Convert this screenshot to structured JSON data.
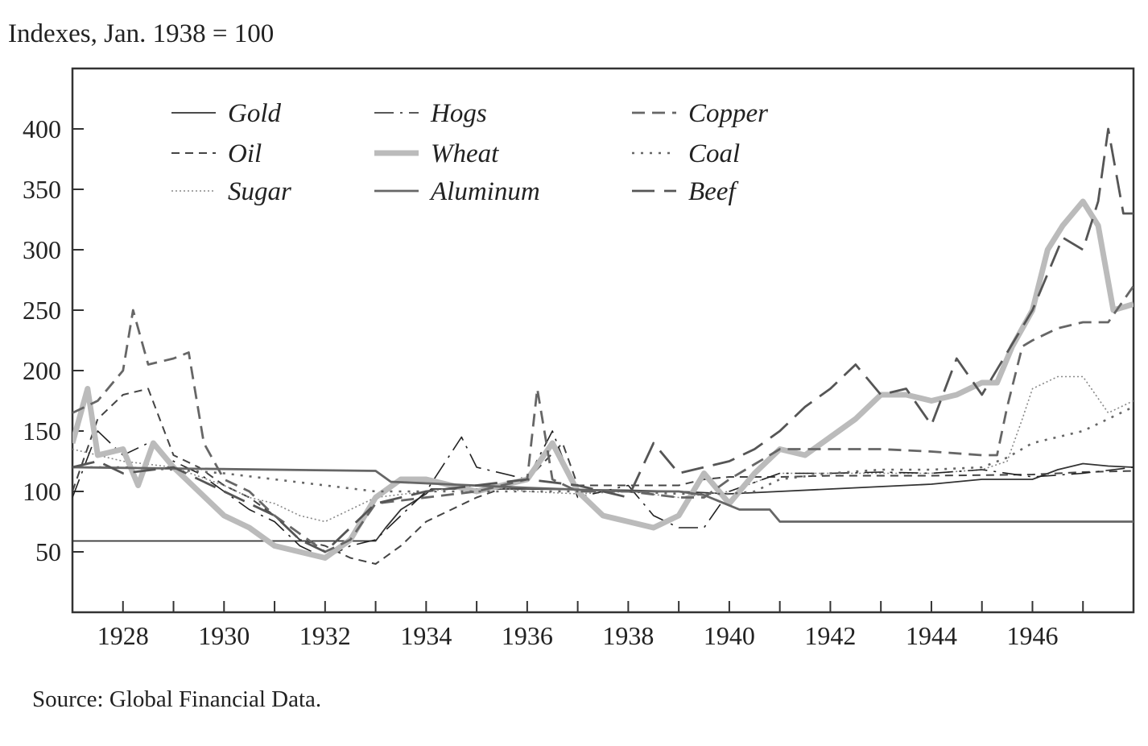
{
  "chart_data": {
    "type": "line",
    "ylabel": "Indexes, Jan. 1938 = 100",
    "source": "Source: Global Financial Data.",
    "xlim": [
      1927.0,
      1948.0
    ],
    "ylim": [
      0,
      450
    ],
    "x_ticks": [
      1928,
      1930,
      1932,
      1934,
      1936,
      1938,
      1940,
      1942,
      1944,
      1946
    ],
    "y_ticks": [
      50,
      100,
      150,
      200,
      250,
      300,
      350,
      400
    ],
    "series": [
      {
        "name": "Gold",
        "color": "#333333",
        "width": 1.8,
        "dash": "",
        "x": [
          1927.0,
          1933.0,
          1933.2,
          1933.5,
          1934.0,
          1934.1,
          1936,
          1938,
          1939,
          1940,
          1941,
          1942,
          1943,
          1944,
          1945,
          1946,
          1946.5,
          1947,
          1947.5,
          1948
        ],
        "y": [
          59,
          59,
          70,
          85,
          98,
          102,
          102,
          101,
          100,
          98,
          100,
          102,
          104,
          106,
          110,
          110,
          118,
          123,
          121,
          120
        ]
      },
      {
        "name": "Oil",
        "color": "#444444",
        "width": 2,
        "dash": "10 7",
        "x": [
          1927.0,
          1927.5,
          1928,
          1928.5,
          1929,
          1929.5,
          1930,
          1930.5,
          1931,
          1931.5,
          1932,
          1932.5,
          1933,
          1933.5,
          1934,
          1935,
          1936,
          1936.7,
          1937,
          1938,
          1939,
          1939.5,
          1940,
          1941,
          1942,
          1944,
          1946,
          1947,
          1948
        ],
        "y": [
          100,
          160,
          180,
          185,
          130,
          120,
          105,
          95,
          80,
          60,
          55,
          45,
          40,
          55,
          75,
          95,
          110,
          140,
          105,
          105,
          105,
          110,
          112,
          112,
          113,
          113,
          114,
          116,
          117
        ]
      },
      {
        "name": "Sugar",
        "color": "#888888",
        "width": 1.6,
        "dash": "2 3",
        "x": [
          1927.0,
          1927.5,
          1928,
          1929,
          1930,
          1930.5,
          1931,
          1931.5,
          1932,
          1932.5,
          1933,
          1934,
          1935,
          1936,
          1937,
          1938,
          1939,
          1940,
          1941,
          1942,
          1943,
          1944,
          1945,
          1945.5,
          1945.8,
          1946,
          1946.5,
          1947,
          1947.5,
          1948
        ],
        "y": [
          135,
          130,
          125,
          120,
          105,
          95,
          90,
          80,
          75,
          85,
          95,
          100,
          105,
          100,
          98,
          100,
          95,
          100,
          115,
          115,
          115,
          115,
          118,
          125,
          160,
          185,
          195,
          195,
          165,
          175
        ]
      },
      {
        "name": "Hogs",
        "color": "#222222",
        "width": 1.6,
        "dash": "24 8 3 8",
        "x": [
          1927.0,
          1927.5,
          1928,
          1928.5,
          1929,
          1929.5,
          1930,
          1930.5,
          1931,
          1931.5,
          1932,
          1932.5,
          1933,
          1933.5,
          1934,
          1934.7,
          1935,
          1936,
          1936.5,
          1937,
          1938,
          1938.5,
          1939,
          1939.5,
          1940,
          1941,
          1942,
          1943,
          1944,
          1945,
          1946,
          1947,
          1948
        ],
        "y": [
          95,
          150,
          130,
          140,
          125,
          115,
          100,
          85,
          75,
          55,
          45,
          55,
          60,
          80,
          100,
          145,
          120,
          110,
          150,
          95,
          105,
          80,
          70,
          70,
          100,
          115,
          115,
          116,
          115,
          118,
          112,
          115,
          120
        ]
      },
      {
        "name": "Wheat",
        "color": "#bbbbbb",
        "width": 7,
        "dash": "",
        "x": [
          1927.0,
          1927.3,
          1927.5,
          1928,
          1928.3,
          1928.6,
          1929,
          1929.5,
          1930,
          1930.5,
          1931,
          1931.5,
          1932,
          1932.5,
          1933,
          1933.5,
          1934,
          1935,
          1936,
          1936.5,
          1937,
          1937.5,
          1938,
          1938.5,
          1939,
          1939.5,
          1940,
          1940.5,
          1941,
          1941.5,
          1942,
          1942.5,
          1943,
          1943.5,
          1944,
          1944.5,
          1945,
          1945.3,
          1945.6,
          1946,
          1946.3,
          1946.6,
          1947,
          1947.3,
          1947.6,
          1948
        ],
        "y": [
          140,
          185,
          130,
          135,
          105,
          140,
          120,
          100,
          80,
          70,
          55,
          50,
          45,
          60,
          95,
          110,
          110,
          100,
          110,
          140,
          100,
          80,
          75,
          70,
          80,
          115,
          90,
          115,
          135,
          130,
          145,
          160,
          180,
          180,
          175,
          180,
          190,
          190,
          220,
          250,
          300,
          320,
          340,
          320,
          250,
          255
        ]
      },
      {
        "name": "Aluminum",
        "color": "#666666",
        "width": 2.8,
        "dash": "",
        "x": [
          1927.0,
          1933.0,
          1933.3,
          1936,
          1938,
          1939,
          1939.5,
          1940.2,
          1940.8,
          1941.0,
          1948.0
        ],
        "y": [
          120,
          117,
          108,
          103,
          100,
          100,
          97,
          85,
          85,
          75,
          75
        ]
      },
      {
        "name": "Copper",
        "color": "#666666",
        "width": 2.8,
        "dash": "16 9",
        "x": [
          1927.0,
          1927.5,
          1928,
          1928.2,
          1928.5,
          1929,
          1929.3,
          1929.6,
          1930,
          1930.5,
          1931,
          1931.5,
          1932,
          1932.5,
          1933,
          1934,
          1935,
          1936,
          1936.2,
          1936.5,
          1937,
          1938,
          1939,
          1939.5,
          1940,
          1941,
          1942,
          1943,
          1944,
          1945,
          1945.3,
          1945.5,
          1945.8,
          1946,
          1946.5,
          1947,
          1947.5,
          1948
        ],
        "y": [
          165,
          175,
          200,
          250,
          205,
          210,
          215,
          140,
          110,
          100,
          80,
          65,
          50,
          60,
          90,
          95,
          100,
          110,
          185,
          110,
          100,
          100,
          95,
          95,
          110,
          135,
          135,
          135,
          133,
          130,
          130,
          170,
          220,
          225,
          235,
          240,
          240,
          270
        ]
      },
      {
        "name": "Coal",
        "color": "#666666",
        "width": 2.6,
        "dash": "3 8",
        "x": [
          1927.0,
          1928,
          1929,
          1930,
          1931,
          1932,
          1933,
          1934,
          1935,
          1936,
          1937,
          1938,
          1939,
          1940,
          1940.5,
          1941,
          1942,
          1943,
          1944,
          1945,
          1945.5,
          1946,
          1946.5,
          1947,
          1947.5,
          1948
        ],
        "y": [
          120,
          120,
          118,
          115,
          110,
          105,
          100,
          100,
          100,
          100,
          100,
          100,
          98,
          98,
          100,
          110,
          115,
          118,
          118,
          120,
          128,
          140,
          145,
          150,
          160,
          170
        ]
      },
      {
        "name": "Beef",
        "color": "#555555",
        "width": 2.8,
        "dash": "28 12",
        "x": [
          1927.0,
          1927.5,
          1928,
          1929,
          1930,
          1930.5,
          1931,
          1931.5,
          1932,
          1932.5,
          1933,
          1933.5,
          1934,
          1935,
          1936,
          1937,
          1938,
          1938.5,
          1939,
          1939.5,
          1940,
          1940.5,
          1941,
          1941.5,
          1942,
          1942.5,
          1943,
          1943.5,
          1944,
          1944.5,
          1945,
          1945.5,
          1946,
          1946.3,
          1946.6,
          1947,
          1947.3,
          1947.5,
          1947.8,
          1948
        ],
        "y": [
          120,
          125,
          115,
          120,
          100,
          90,
          80,
          60,
          50,
          70,
          90,
          95,
          100,
          105,
          110,
          105,
          95,
          140,
          115,
          120,
          125,
          135,
          150,
          170,
          185,
          205,
          180,
          185,
          155,
          210,
          180,
          215,
          250,
          280,
          310,
          300,
          340,
          400,
          330,
          330
        ]
      }
    ],
    "legend": {
      "placement": "top-left",
      "columns": 3
    }
  }
}
